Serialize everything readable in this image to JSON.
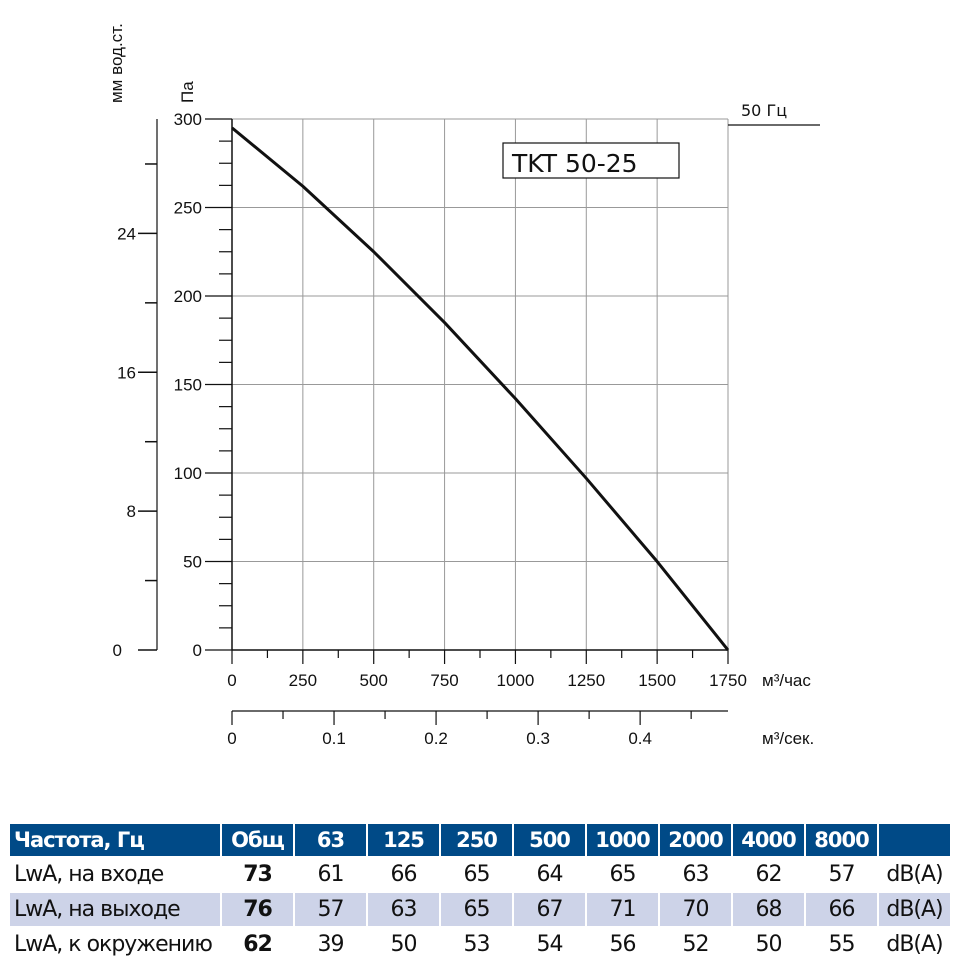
{
  "chart_data": {
    "type": "line",
    "title": "TKT 50-25",
    "legend": "50 Гц",
    "legend_position": "top-right",
    "xlabel": "м³/час",
    "xlabel2": "м³/сек.",
    "ylabel": "Па",
    "ylabel2": "мм вод.ст.",
    "xlim": [
      0,
      1750
    ],
    "ylim": [
      0,
      300
    ],
    "grid": true,
    "x_ticks": [
      "0",
      "250",
      "500",
      "750",
      "1000",
      "1250",
      "1500",
      "1750"
    ],
    "y_ticks": [
      "0",
      "50",
      "100",
      "150",
      "200",
      "250",
      "300"
    ],
    "x2_ticks": [
      "0",
      "0.1",
      "0.2",
      "0.3",
      "0.4"
    ],
    "y2_ticks": [
      "0",
      "8",
      "16",
      "24"
    ],
    "series": [
      {
        "name": "50 Гц",
        "x": [
          0,
          250,
          500,
          750,
          1000,
          1250,
          1500,
          1750
        ],
        "y": [
          295,
          262,
          225,
          185,
          142,
          97,
          50,
          0
        ]
      }
    ]
  },
  "table": {
    "headers": [
      "Частота, Гц",
      "Общ",
      "63",
      "125",
      "250",
      "500",
      "1000",
      "2000",
      "4000",
      "8000",
      ""
    ],
    "rows": [
      [
        "LwA, на входе",
        "73",
        "61",
        "66",
        "65",
        "64",
        "65",
        "63",
        "62",
        "57",
        "dB(A)"
      ],
      [
        "LwA, на выходе",
        "76",
        "57",
        "63",
        "65",
        "67",
        "71",
        "70",
        "68",
        "66",
        "dB(A)"
      ],
      [
        "LwA, к окружению",
        "62",
        "39",
        "50",
        "53",
        "54",
        "56",
        "52",
        "50",
        "55",
        "dB(A)"
      ]
    ]
  }
}
